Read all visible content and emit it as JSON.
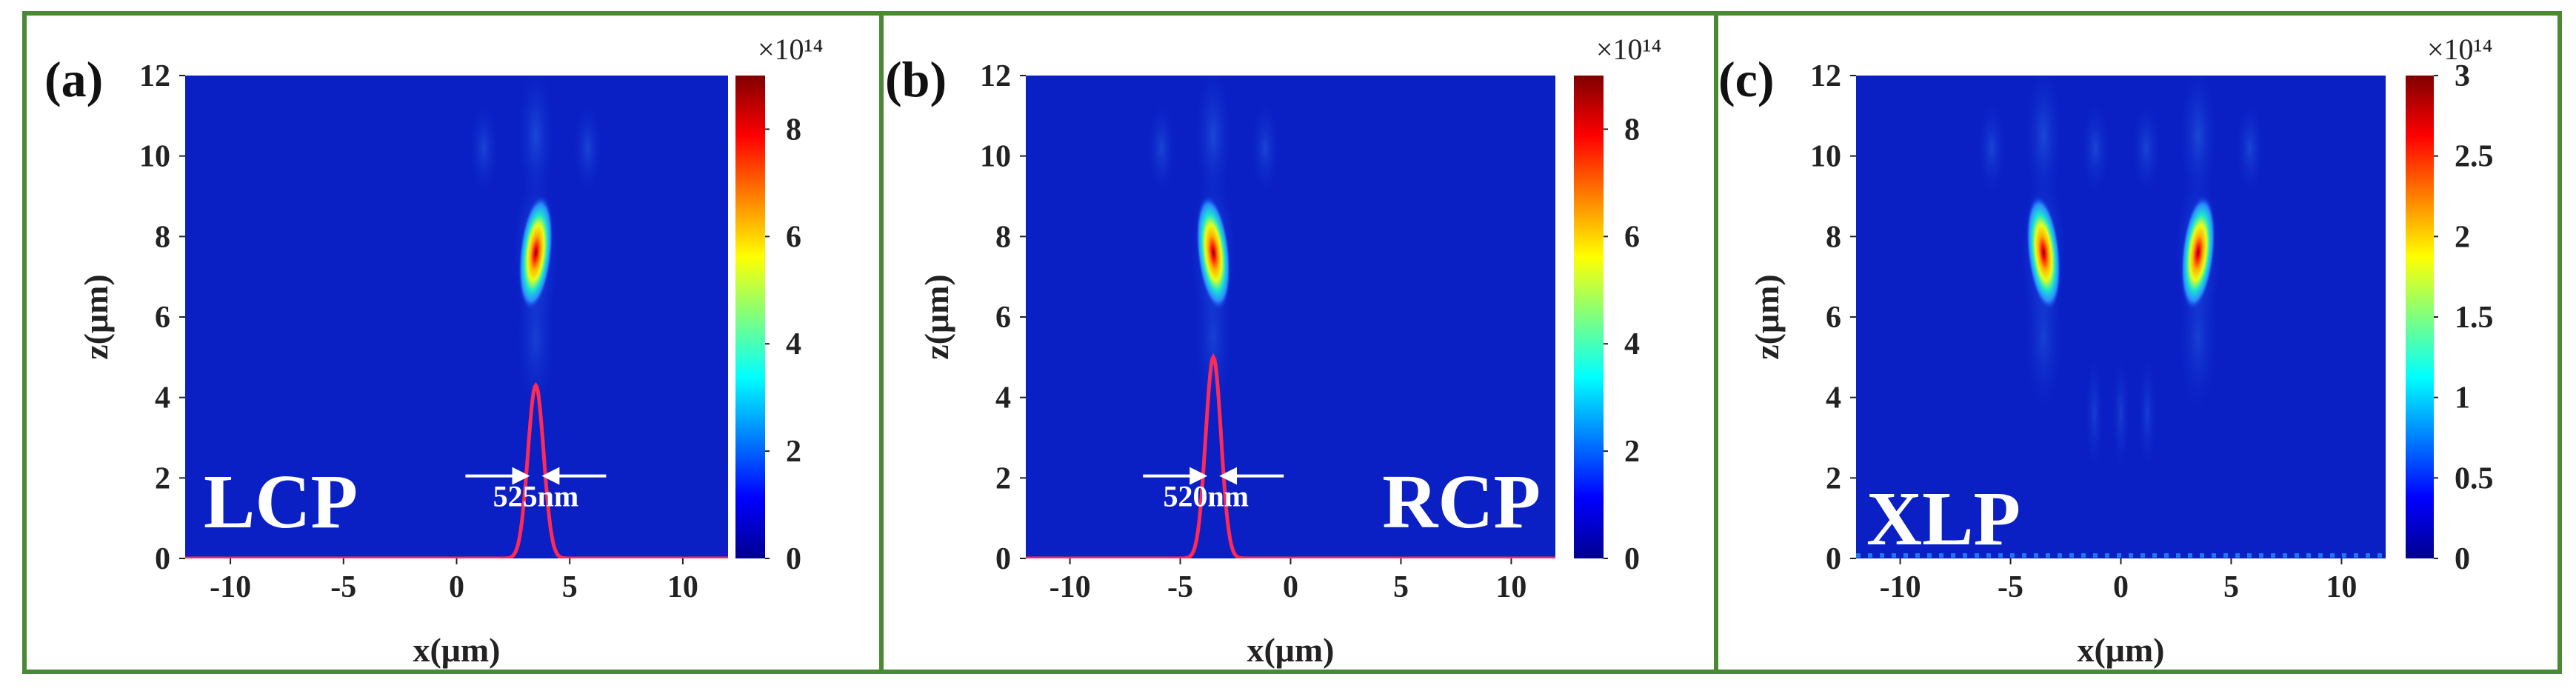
{
  "figure": {
    "frame_color": "#4a8a34",
    "panels": [
      {
        "letter": "(a)",
        "polarization": "LCP",
        "fwhm_text": "525nm",
        "colorbar_exponent": "×10¹⁴",
        "colorbar_max": 9,
        "colorbar_ticks": [
          "0",
          "2",
          "4",
          "6",
          "8"
        ]
      },
      {
        "letter": "(b)",
        "polarization": "RCP",
        "fwhm_text": "520nm",
        "colorbar_exponent": "×10¹⁴",
        "colorbar_max": 9,
        "colorbar_ticks": [
          "0",
          "2",
          "4",
          "6",
          "8"
        ]
      },
      {
        "letter": "(c)",
        "polarization": "XLP",
        "fwhm_text": "",
        "colorbar_exponent": "×10¹⁴",
        "colorbar_max": 3,
        "colorbar_ticks": [
          "0",
          "0.5",
          "1",
          "1.5",
          "2",
          "2.5",
          "3"
        ]
      }
    ]
  },
  "chart_data": [
    {
      "type": "heatmap",
      "title": "(a) LCP",
      "xlabel": "x(μm)",
      "ylabel": "z(μm)",
      "xlim": [
        -12,
        12
      ],
      "ylim": [
        0,
        12
      ],
      "xticks": [
        -10,
        -5,
        0,
        5,
        10
      ],
      "yticks": [
        0,
        2,
        4,
        6,
        8,
        10,
        12
      ],
      "colorbar": {
        "range": [
          0,
          9
        ],
        "ticks": [
          0,
          2,
          4,
          6,
          8
        ],
        "exponent": "×10¹⁴"
      },
      "focal_spots": [
        {
          "x": 3.5,
          "z": 7.6,
          "peak": 9
        }
      ],
      "profile_line": {
        "center_x": 3.5,
        "peak_z": 4.3,
        "fwhm_nm": 525
      },
      "annotation": "525nm",
      "label": "LCP"
    },
    {
      "type": "heatmap",
      "title": "(b) RCP",
      "xlabel": "x(μm)",
      "ylabel": "z(μm)",
      "xlim": [
        -12,
        12
      ],
      "ylim": [
        0,
        12
      ],
      "xticks": [
        -10,
        -5,
        0,
        5,
        10
      ],
      "yticks": [
        0,
        2,
        4,
        6,
        8,
        10,
        12
      ],
      "colorbar": {
        "range": [
          0,
          9
        ],
        "ticks": [
          0,
          2,
          4,
          6,
          8
        ],
        "exponent": "×10¹⁴"
      },
      "focal_spots": [
        {
          "x": -3.5,
          "z": 7.6,
          "peak": 9
        }
      ],
      "profile_line": {
        "center_x": -3.5,
        "peak_z": 5.0,
        "fwhm_nm": 520
      },
      "annotation": "520nm",
      "label": "RCP"
    },
    {
      "type": "heatmap",
      "title": "(c) XLP",
      "xlabel": "x(μm)",
      "ylabel": "z(μm)",
      "xlim": [
        -12,
        12
      ],
      "ylim": [
        0,
        12
      ],
      "xticks": [
        -10,
        -5,
        0,
        5,
        10
      ],
      "yticks": [
        0,
        2,
        4,
        6,
        8,
        10,
        12
      ],
      "colorbar": {
        "range": [
          0,
          3
        ],
        "ticks": [
          0,
          0.5,
          1,
          1.5,
          2,
          2.5,
          3
        ],
        "exponent": "×10¹⁴"
      },
      "focal_spots": [
        {
          "x": -3.5,
          "z": 7.6,
          "peak": 3
        },
        {
          "x": 3.5,
          "z": 7.6,
          "peak": 3
        }
      ],
      "label": "XLP"
    }
  ]
}
